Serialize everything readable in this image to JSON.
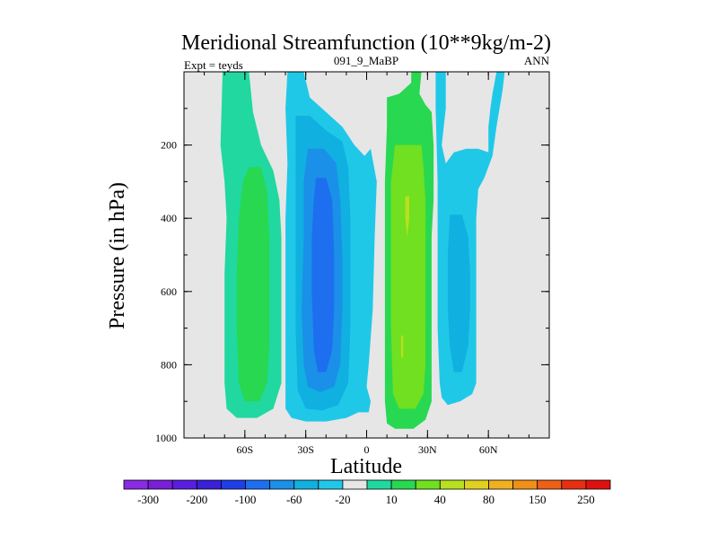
{
  "chart_data": {
    "type": "contour",
    "title": "Meridional Streamfunction (10**9kg/m-2)",
    "left_label": "Expt = teyds",
    "center_label": "091_9_MaBP",
    "right_label": "ANN",
    "xlabel": "Latitude",
    "ylabel": "Pressure (in hPa)",
    "xlim": [
      -90,
      90
    ],
    "ylim": [
      1000,
      0
    ],
    "x_ticks": [
      {
        "value": -60,
        "label": "60S"
      },
      {
        "value": -30,
        "label": "30S"
      },
      {
        "value": 0,
        "label": "0"
      },
      {
        "value": 30,
        "label": "30N"
      },
      {
        "value": 60,
        "label": "60N"
      }
    ],
    "y_ticks": [
      {
        "value": 200,
        "label": "200"
      },
      {
        "value": 400,
        "label": "400"
      },
      {
        "value": 600,
        "label": "600"
      },
      {
        "value": 800,
        "label": "800"
      },
      {
        "value": 1000,
        "label": "1000"
      }
    ],
    "background_color": "#e6e6e6",
    "colorbar": {
      "colors": [
        "#8a2be2",
        "#7a1fd6",
        "#5a1ee0",
        "#3a20d8",
        "#1f3ee8",
        "#1e6ef0",
        "#1a90e8",
        "#10b0e0",
        "#20c8e8",
        "#e6e6e6",
        "#20d8a0",
        "#28d850",
        "#70e020",
        "#b8e020",
        "#e0d020",
        "#f0b020",
        "#f09018",
        "#ec6018",
        "#e83010",
        "#e01010"
      ],
      "labels": [
        "-300",
        "-200",
        "-100",
        "-60",
        "-20",
        "10",
        "40",
        "80",
        "150",
        "250"
      ]
    },
    "regions": [
      {
        "name": "sh-outer-cell",
        "value": 20,
        "color": "#20d8a0",
        "polygon": [
          [
            -71,
            0
          ],
          [
            -58,
            0
          ],
          [
            -56,
            110
          ],
          [
            -52,
            200
          ],
          [
            -46,
            270
          ],
          [
            -43,
            350
          ],
          [
            -42,
            450
          ],
          [
            -42,
            550
          ],
          [
            -42,
            700
          ],
          [
            -42,
            850
          ],
          [
            -46,
            920
          ],
          [
            -54,
            945
          ],
          [
            -64,
            945
          ],
          [
            -69,
            920
          ],
          [
            -70,
            850
          ],
          [
            -70,
            700
          ],
          [
            -70,
            550
          ],
          [
            -69,
            400
          ],
          [
            -70,
            300
          ],
          [
            -72,
            200
          ]
        ]
      },
      {
        "name": "sh-outer-core",
        "value": 30,
        "color": "#28d850",
        "polygon": [
          [
            -58,
            260
          ],
          [
            -52,
            260
          ],
          [
            -49,
            330
          ],
          [
            -48,
            450
          ],
          [
            -48,
            600
          ],
          [
            -48,
            750
          ],
          [
            -49,
            850
          ],
          [
            -53,
            900
          ],
          [
            -60,
            900
          ],
          [
            -63,
            850
          ],
          [
            -64,
            700
          ],
          [
            -64,
            550
          ],
          [
            -63,
            400
          ],
          [
            -61,
            300
          ]
        ]
      },
      {
        "name": "sh-ferrel-outer",
        "value": -10,
        "color": "#20c8e8",
        "polygon": [
          [
            -39,
            0
          ],
          [
            -31,
            0
          ],
          [
            -28,
            70
          ],
          [
            -20,
            110
          ],
          [
            -12,
            150
          ],
          [
            -6,
            200
          ],
          [
            -1,
            230
          ],
          [
            2,
            210
          ],
          [
            5,
            300
          ],
          [
            4,
            450
          ],
          [
            3,
            650
          ],
          [
            1,
            800
          ],
          [
            0,
            860
          ],
          [
            2,
            900
          ],
          [
            1,
            930
          ],
          [
            -4,
            930
          ],
          [
            -10,
            945
          ],
          [
            -20,
            955
          ],
          [
            -30,
            955
          ],
          [
            -37,
            945
          ],
          [
            -40,
            920
          ],
          [
            -40,
            850
          ],
          [
            -40,
            700
          ],
          [
            -40,
            550
          ],
          [
            -40,
            400
          ],
          [
            -39,
            250
          ],
          [
            -40,
            100
          ]
        ]
      },
      {
        "name": "sh-ferrel-mid",
        "value": -20,
        "color": "#10b0e0",
        "polygon": [
          [
            -35,
            120
          ],
          [
            -28,
            120
          ],
          [
            -20,
            160
          ],
          [
            -12,
            190
          ],
          [
            -9,
            260
          ],
          [
            -8,
            400
          ],
          [
            -8,
            550
          ],
          [
            -8,
            700
          ],
          [
            -9,
            850
          ],
          [
            -14,
            910
          ],
          [
            -22,
            925
          ],
          [
            -30,
            920
          ],
          [
            -34,
            870
          ],
          [
            -35,
            700
          ],
          [
            -35,
            500
          ],
          [
            -35,
            300
          ],
          [
            -35,
            200
          ]
        ]
      },
      {
        "name": "sh-ferrel-inner",
        "value": -40,
        "color": "#1a90e8",
        "polygon": [
          [
            -29,
            210
          ],
          [
            -21,
            210
          ],
          [
            -15,
            250
          ],
          [
            -13,
            350
          ],
          [
            -12,
            500
          ],
          [
            -12,
            650
          ],
          [
            -13,
            800
          ],
          [
            -16,
            860
          ],
          [
            -23,
            875
          ],
          [
            -29,
            860
          ],
          [
            -31,
            800
          ],
          [
            -32,
            650
          ],
          [
            -31,
            450
          ],
          [
            -31,
            300
          ]
        ]
      },
      {
        "name": "sh-ferrel-core",
        "value": -60,
        "color": "#1e6ef0",
        "polygon": [
          [
            -25,
            290
          ],
          [
            -20,
            290
          ],
          [
            -17,
            350
          ],
          [
            -16,
            500
          ],
          [
            -16,
            650
          ],
          [
            -17,
            760
          ],
          [
            -20,
            820
          ],
          [
            -24,
            820
          ],
          [
            -26,
            760
          ],
          [
            -27,
            600
          ],
          [
            -27,
            450
          ],
          [
            -26,
            350
          ]
        ]
      },
      {
        "name": "tropical-cell",
        "value": 30,
        "color": "#28d850",
        "polygon": [
          [
            10,
            70
          ],
          [
            16,
            60
          ],
          [
            22,
            30
          ],
          [
            22,
            0
          ],
          [
            27,
            0
          ],
          [
            26,
            60
          ],
          [
            29,
            90
          ],
          [
            32,
            110
          ],
          [
            33,
            200
          ],
          [
            33,
            350
          ],
          [
            32,
            450
          ],
          [
            32,
            550
          ],
          [
            32,
            700
          ],
          [
            32,
            900
          ],
          [
            29,
            950
          ],
          [
            23,
            975
          ],
          [
            14,
            975
          ],
          [
            10,
            960
          ],
          [
            9,
            900
          ],
          [
            9,
            700
          ],
          [
            9,
            500
          ],
          [
            9,
            300
          ],
          [
            10,
            150
          ]
        ]
      },
      {
        "name": "tropical-core",
        "value": 50,
        "color": "#70e020",
        "polygon": [
          [
            14,
            200
          ],
          [
            27,
            200
          ],
          [
            28,
            260
          ],
          [
            29,
            350
          ],
          [
            29,
            500
          ],
          [
            29,
            650
          ],
          [
            29,
            800
          ],
          [
            28,
            880
          ],
          [
            24,
            920
          ],
          [
            16,
            920
          ],
          [
            13,
            880
          ],
          [
            12,
            700
          ],
          [
            12,
            500
          ],
          [
            12,
            300
          ]
        ]
      },
      {
        "name": "tropical-peak",
        "value": 80,
        "color": "#b8e020",
        "polygon": [
          [
            19,
            340
          ],
          [
            21,
            340
          ],
          [
            21,
            400
          ],
          [
            20,
            450
          ],
          [
            19,
            400
          ]
        ]
      },
      {
        "name": "tropical-peak-low",
        "value": 80,
        "color": "#b8e020",
        "polygon": [
          [
            17,
            720
          ],
          [
            18,
            720
          ],
          [
            18,
            780
          ],
          [
            17,
            780
          ]
        ]
      },
      {
        "name": "nh-ferrel-outer",
        "value": -10,
        "color": "#20c8e8",
        "polygon": [
          [
            34,
            0
          ],
          [
            39,
            0
          ],
          [
            39,
            100
          ],
          [
            37,
            200
          ],
          [
            39,
            250
          ],
          [
            43,
            220
          ],
          [
            49,
            210
          ],
          [
            55,
            210
          ],
          [
            60,
            220
          ],
          [
            60,
            150
          ],
          [
            61,
            100
          ],
          [
            62,
            60
          ],
          [
            64,
            0
          ],
          [
            68,
            0
          ],
          [
            67,
            50
          ],
          [
            64,
            150
          ],
          [
            62,
            230
          ],
          [
            58,
            290
          ],
          [
            55,
            320
          ],
          [
            54,
            400
          ],
          [
            54,
            550
          ],
          [
            54,
            700
          ],
          [
            54,
            850
          ],
          [
            52,
            880
          ],
          [
            46,
            900
          ],
          [
            40,
            910
          ],
          [
            37,
            890
          ],
          [
            36,
            850
          ],
          [
            35,
            700
          ],
          [
            35,
            500
          ],
          [
            35,
            300
          ],
          [
            34,
            100
          ]
        ]
      },
      {
        "name": "nh-ferrel-mid",
        "value": -20,
        "color": "#10b0e0",
        "polygon": [
          [
            41,
            390
          ],
          [
            47,
            390
          ],
          [
            50,
            450
          ],
          [
            51,
            550
          ],
          [
            51,
            650
          ],
          [
            50,
            750
          ],
          [
            47,
            820
          ],
          [
            43,
            820
          ],
          [
            41,
            750
          ],
          [
            40,
            650
          ],
          [
            40,
            500
          ]
        ]
      }
    ]
  }
}
